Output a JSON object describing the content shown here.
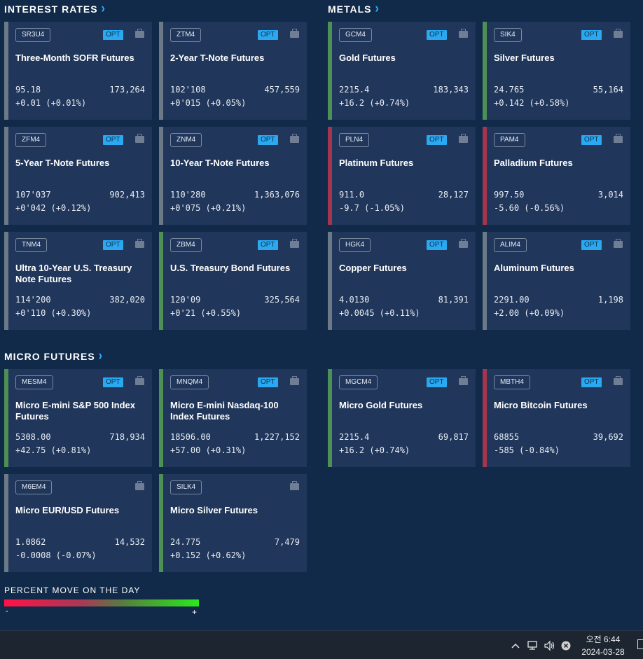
{
  "sections": {
    "interest_rates": "INTEREST RATES",
    "metals": "METALS",
    "micro_futures": "MICRO FUTURES"
  },
  "chevron": "›",
  "cards": [
    {
      "symbol": "SR3U4",
      "opt": "OPT",
      "name": "Three-Month SOFR Futures",
      "price": "95.18",
      "volume": "173,264",
      "change": "+0.01 (+0.01%)",
      "trend": "flat"
    },
    {
      "symbol": "ZTM4",
      "opt": "OPT",
      "name": "2-Year T-Note Futures",
      "price": "102'108",
      "volume": "457,559",
      "change": "+0'015 (+0.05%)",
      "trend": "flat"
    },
    {
      "symbol": "GCM4",
      "opt": "OPT",
      "name": "Gold Futures",
      "price": "2215.4",
      "volume": "183,343",
      "change": "+16.2 (+0.74%)",
      "trend": "pos"
    },
    {
      "symbol": "SIK4",
      "opt": "OPT",
      "name": "Silver Futures",
      "price": "24.765",
      "volume": "55,164",
      "change": "+0.142 (+0.58%)",
      "trend": "pos"
    },
    {
      "symbol": "ZFM4",
      "opt": "OPT",
      "name": "5-Year T-Note Futures",
      "price": "107'037",
      "volume": "902,413",
      "change": "+0'042 (+0.12%)",
      "trend": "flat"
    },
    {
      "symbol": "ZNM4",
      "opt": "OPT",
      "name": "10-Year T-Note Futures",
      "price": "110'280",
      "volume": "1,363,076",
      "change": "+0'075 (+0.21%)",
      "trend": "flat"
    },
    {
      "symbol": "PLN4",
      "opt": "OPT",
      "name": "Platinum Futures",
      "price": "911.0",
      "volume": "28,127",
      "change": "-9.7 (-1.05%)",
      "trend": "neg"
    },
    {
      "symbol": "PAM4",
      "opt": "OPT",
      "name": "Palladium Futures",
      "price": "997.50",
      "volume": "3,014",
      "change": "-5.60 (-0.56%)",
      "trend": "neg"
    },
    {
      "symbol": "TNM4",
      "opt": "OPT",
      "name": "Ultra 10-Year U.S. Treasury Note Futures",
      "price": "114'200",
      "volume": "382,020",
      "change": "+0'110 (+0.30%)",
      "trend": "flat"
    },
    {
      "symbol": "ZBM4",
      "opt": "OPT",
      "name": "U.S. Treasury Bond Futures",
      "price": "120'09",
      "volume": "325,564",
      "change": "+0'21 (+0.55%)",
      "trend": "pos"
    },
    {
      "symbol": "HGK4",
      "opt": "OPT",
      "name": "Copper Futures",
      "price": "4.0130",
      "volume": "81,391",
      "change": "+0.0045 (+0.11%)",
      "trend": "flat"
    },
    {
      "symbol": "ALIM4",
      "opt": "OPT",
      "name": "Aluminum Futures",
      "price": "2291.00",
      "volume": "1,198",
      "change": "+2.00 (+0.09%)",
      "trend": "flat"
    },
    {
      "symbol": "MESM4",
      "opt": "OPT",
      "name": "Micro E-mini S&P 500 Index Futures",
      "price": "5308.00",
      "volume": "718,934",
      "change": "+42.75 (+0.81%)",
      "trend": "pos"
    },
    {
      "symbol": "MNQM4",
      "opt": "OPT",
      "name": "Micro E-mini Nasdaq-100 Index Futures",
      "price": "18506.00",
      "volume": "1,227,152",
      "change": "+57.00 (+0.31%)",
      "trend": "pos"
    },
    {
      "symbol": "MGCM4",
      "opt": "OPT",
      "name": "Micro Gold Futures",
      "price": "2215.4",
      "volume": "69,817",
      "change": "+16.2 (+0.74%)",
      "trend": "pos"
    },
    {
      "symbol": "MBTH4",
      "opt": "OPT",
      "name": "Micro Bitcoin Futures",
      "price": "68855",
      "volume": "39,692",
      "change": "-585 (-0.84%)",
      "trend": "neg"
    },
    {
      "symbol": "M6EM4",
      "opt": "",
      "name": "Micro EUR/USD Futures",
      "price": "1.0862",
      "volume": "14,532",
      "change": "-0.0008 (-0.07%)",
      "trend": "flat"
    },
    {
      "symbol": "SILK4",
      "opt": "",
      "name": "Micro Silver Futures",
      "price": "24.775",
      "volume": "7,479",
      "change": "+0.152 (+0.62%)",
      "trend": "pos"
    }
  ],
  "legend": {
    "title": "PERCENT MOVE ON THE DAY",
    "minus": "-",
    "plus": "+"
  },
  "taskbar": {
    "ampm_time": "오전 6:44",
    "date": "2024-03-28",
    "chevron_up": "^",
    "network": "🖥",
    "volume": "🔊",
    "close": "⊗"
  }
}
